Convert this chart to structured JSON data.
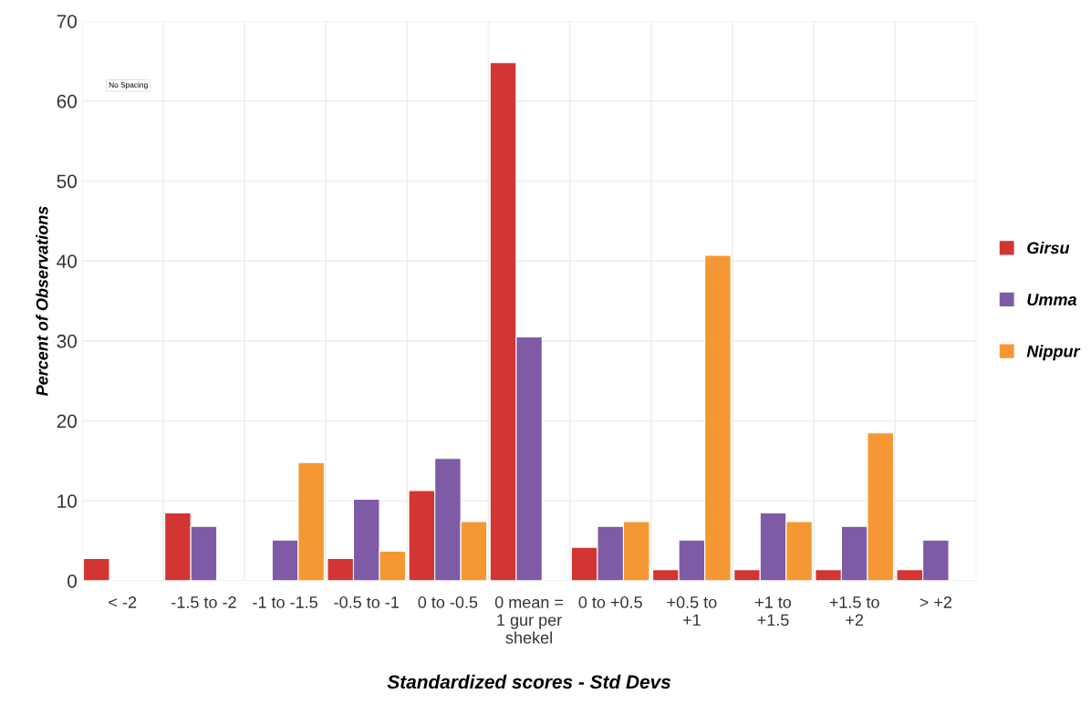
{
  "chart_data": {
    "type": "bar",
    "xlabel": "Standardized scores - Std Devs",
    "ylabel": "Percent of Observations",
    "categories": [
      "< -2",
      "-1.5 to -2",
      "-1 to -1.5",
      "-0.5 to -1",
      "0 to -0.5",
      "0 mean =\n1 gur per\nshekel",
      "0 to +0.5",
      "+0.5 to\n+1",
      "+1 to\n+1.5",
      "+1.5 to\n+2",
      "> +2"
    ],
    "series": [
      {
        "name": "Girsu",
        "color": "#d33532",
        "values": [
          2.8,
          8.5,
          null,
          2.8,
          11.3,
          64.8,
          4.2,
          1.4,
          1.4,
          1.4,
          1.4
        ]
      },
      {
        "name": "Umma",
        "color": "#7f5ba6",
        "values": [
          null,
          6.8,
          5.1,
          10.2,
          15.3,
          30.5,
          6.8,
          5.1,
          8.5,
          6.8,
          5.1
        ]
      },
      {
        "name": "Nippur",
        "color": "#f59833",
        "values": [
          null,
          null,
          14.8,
          3.7,
          7.4,
          null,
          7.4,
          40.7,
          7.4,
          18.5,
          null
        ]
      }
    ],
    "ylim": [
      0,
      70
    ],
    "yticks": [
      0,
      10,
      20,
      30,
      40,
      50,
      60,
      70
    ],
    "grid": true,
    "legend": "right",
    "annotations": [
      "No Spacing"
    ]
  }
}
